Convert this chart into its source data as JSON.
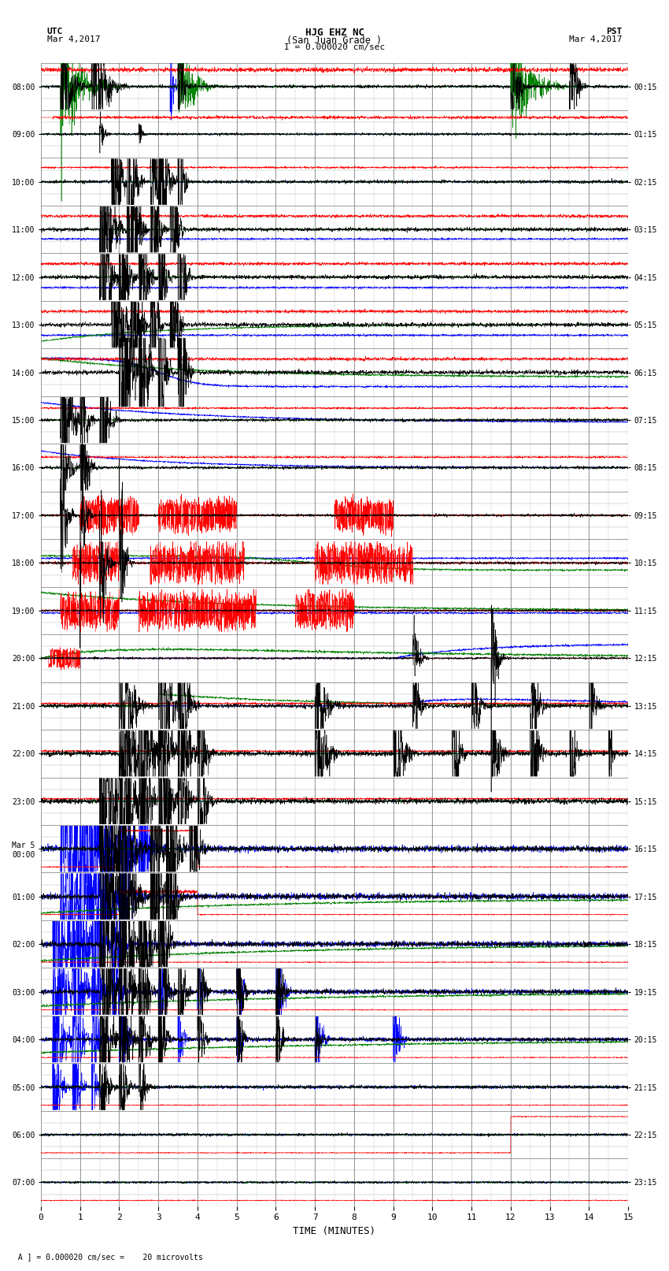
{
  "title_line1": "HJG EHZ NC",
  "title_line2": "(San Juan Grade )",
  "title_line3": "I = 0.000020 cm/sec",
  "label_utc": "UTC",
  "label_pst": "PST",
  "label_date_left": "Mar 4,2017",
  "label_date_right": "Mar 4,2017",
  "footer_left": " A",
  "footer_text": "= 0.000020 cm/sec =    20 microvolts",
  "xlabel": "TIME (MINUTES)",
  "yticks_left": [
    "08:00",
    "09:00",
    "10:00",
    "11:00",
    "12:00",
    "13:00",
    "14:00",
    "15:00",
    "16:00",
    "17:00",
    "18:00",
    "19:00",
    "20:00",
    "21:00",
    "22:00",
    "23:00",
    "Mar 5\n00:00",
    "01:00",
    "02:00",
    "03:00",
    "04:00",
    "05:00",
    "06:00",
    "07:00"
  ],
  "yticks_right": [
    "00:15",
    "01:15",
    "02:15",
    "03:15",
    "04:15",
    "05:15",
    "06:15",
    "07:15",
    "08:15",
    "09:15",
    "10:15",
    "11:15",
    "12:15",
    "13:15",
    "14:15",
    "15:15",
    "16:15",
    "17:15",
    "18:15",
    "19:15",
    "20:15",
    "21:15",
    "22:15",
    "23:15"
  ],
  "xticks": [
    0,
    1,
    2,
    3,
    4,
    5,
    6,
    7,
    8,
    9,
    10,
    11,
    12,
    13,
    14,
    15
  ],
  "num_rows": 24,
  "bg_color": "#ffffff",
  "grid_color": "#777777",
  "fig_width": 8.5,
  "fig_height": 16.13,
  "dpi": 100,
  "seed": 12345
}
